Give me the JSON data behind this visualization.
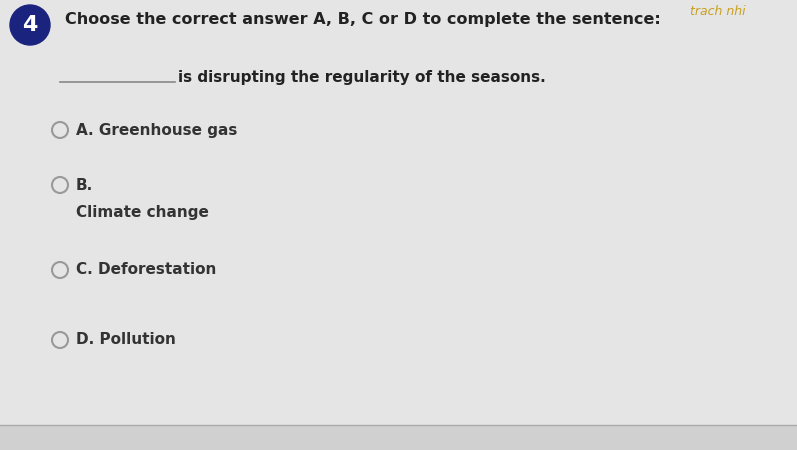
{
  "question_number": "4",
  "instruction_line1": "Choose the correct answer A, B, C or D to complete the sentence:",
  "sentence_blank": "________________",
  "sentence_rest": " is disrupting the regularity of the seasons.",
  "options": [
    {
      "label": "A. Greenhouse gas",
      "two_line": false,
      "label2": ""
    },
    {
      "label": "B.",
      "two_line": true,
      "label2": "Climate change"
    },
    {
      "label": "C. Deforestation",
      "two_line": false,
      "label2": ""
    },
    {
      "label": "D. Pollution",
      "two_line": false,
      "label2": ""
    }
  ],
  "bg_color": "#e8e8e8",
  "circle_color": "#1a237e",
  "number_color": "#ffffff",
  "text_color": "#333333",
  "bold_text_color": "#222222",
  "radio_color": "#999999",
  "corner_text": "trach nhi",
  "corner_text_color": "#c8a020",
  "line_color": "#888888"
}
